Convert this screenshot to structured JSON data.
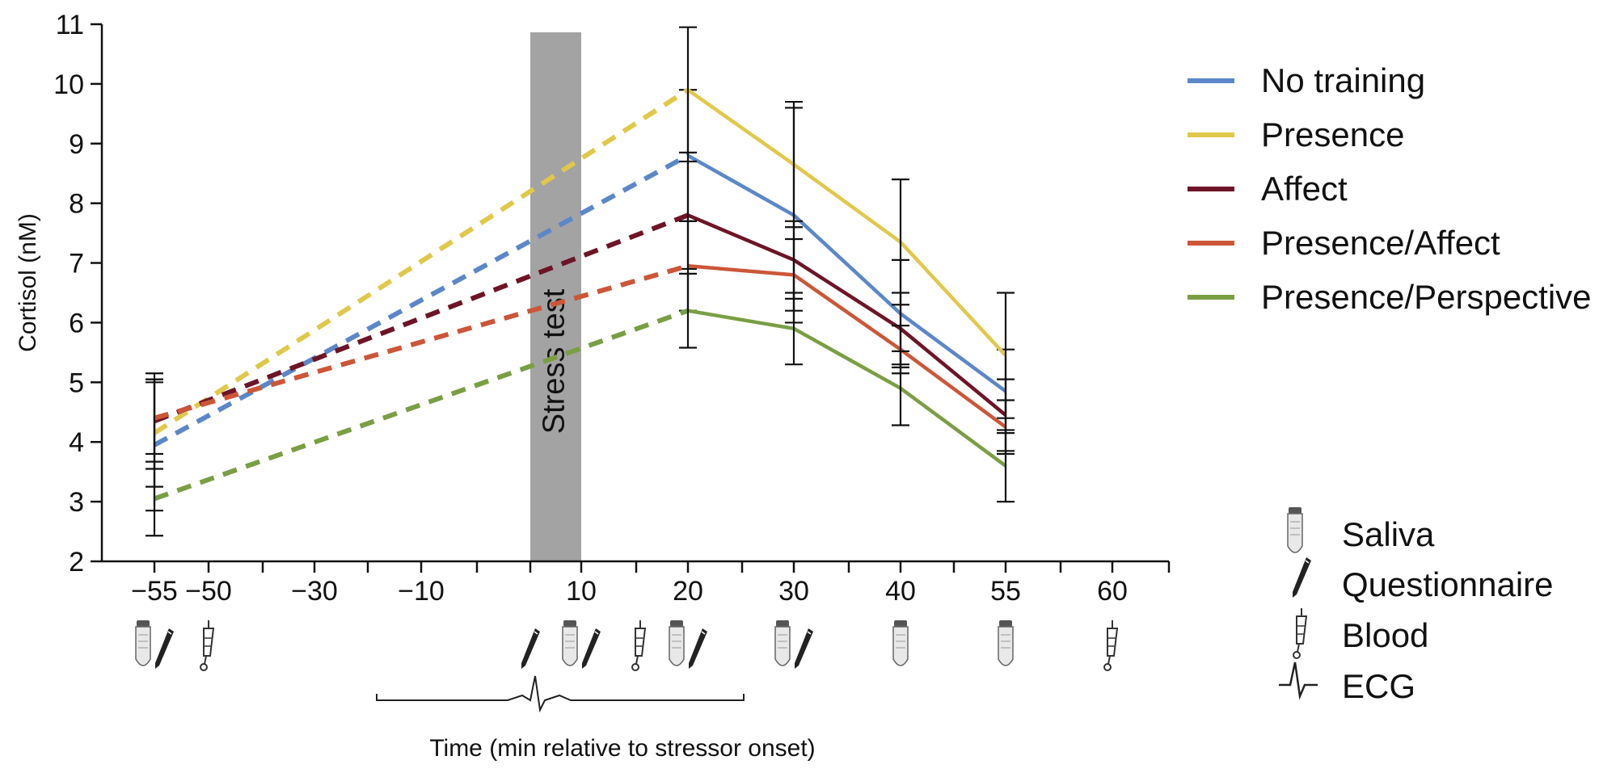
{
  "chart_data": {
    "type": "line",
    "title": "",
    "xlabel": "Time (min relative to stressor onset)",
    "ylabel": "Cortisol (nM)",
    "ylim": [
      2,
      11
    ],
    "y_ticks": [
      "2",
      "3",
      "4",
      "5",
      "6",
      "7",
      "8",
      "9",
      "10",
      "11"
    ],
    "x_tick_labels": [
      "−55",
      "−50",
      "−30",
      "−10",
      "10",
      "20",
      "30",
      "40",
      "55",
      "60"
    ],
    "x": [
      "−55",
      "20",
      "30",
      "40",
      "55"
    ],
    "dashed_segment": [
      "−55",
      "20"
    ],
    "stress_test": {
      "label": "Stress test",
      "from": "−5",
      "to": "10"
    },
    "series": [
      {
        "name": "No training",
        "color": "#5b87c8",
        "values": [
          3.95,
          8.8,
          7.8,
          6.15,
          4.85
        ],
        "err": [
          1.1,
          1.1,
          1.8,
          0.9,
          0.7
        ]
      },
      {
        "name": "Presence",
        "color": "#e0c84a",
        "values": [
          4.15,
          9.9,
          8.65,
          7.35,
          5.45
        ],
        "err": [
          0.9,
          1.05,
          1.05,
          1.05,
          1.05
        ]
      },
      {
        "name": "Affect",
        "color": "#6e1427",
        "values": [
          4.35,
          7.8,
          7.05,
          5.9,
          4.45
        ],
        "err": [
          0.8,
          0.9,
          0.65,
          0.6,
          0.6
        ]
      },
      {
        "name": "Presence/Affect",
        "color": "#cc5638",
        "values": [
          4.4,
          6.95,
          6.8,
          5.55,
          4.25
        ],
        "err": [
          0.6,
          0.75,
          0.6,
          0.4,
          0.45
        ]
      },
      {
        "name": "Presence/Perspective",
        "color": "#7a9e44",
        "values": [
          3.05,
          6.2,
          5.9,
          4.9,
          3.6
        ],
        "err": [
          0.62,
          0.62,
          0.6,
          0.62,
          0.6
        ]
      }
    ],
    "legend_position": "top-right",
    "grid": false,
    "sampling_legend": [
      "Saliva",
      "Questionnaire",
      "Blood",
      "ECG"
    ],
    "sampling_icons": {
      "saliva": [
        "−55",
        "10",
        "20",
        "30",
        "40",
        "55"
      ],
      "questionnaire": [
        "−55",
        "−5",
        "10",
        "20",
        "30"
      ],
      "blood": [
        "−50",
        "15",
        "60"
      ]
    },
    "ecg_span": [
      "−30",
      "25"
    ]
  }
}
